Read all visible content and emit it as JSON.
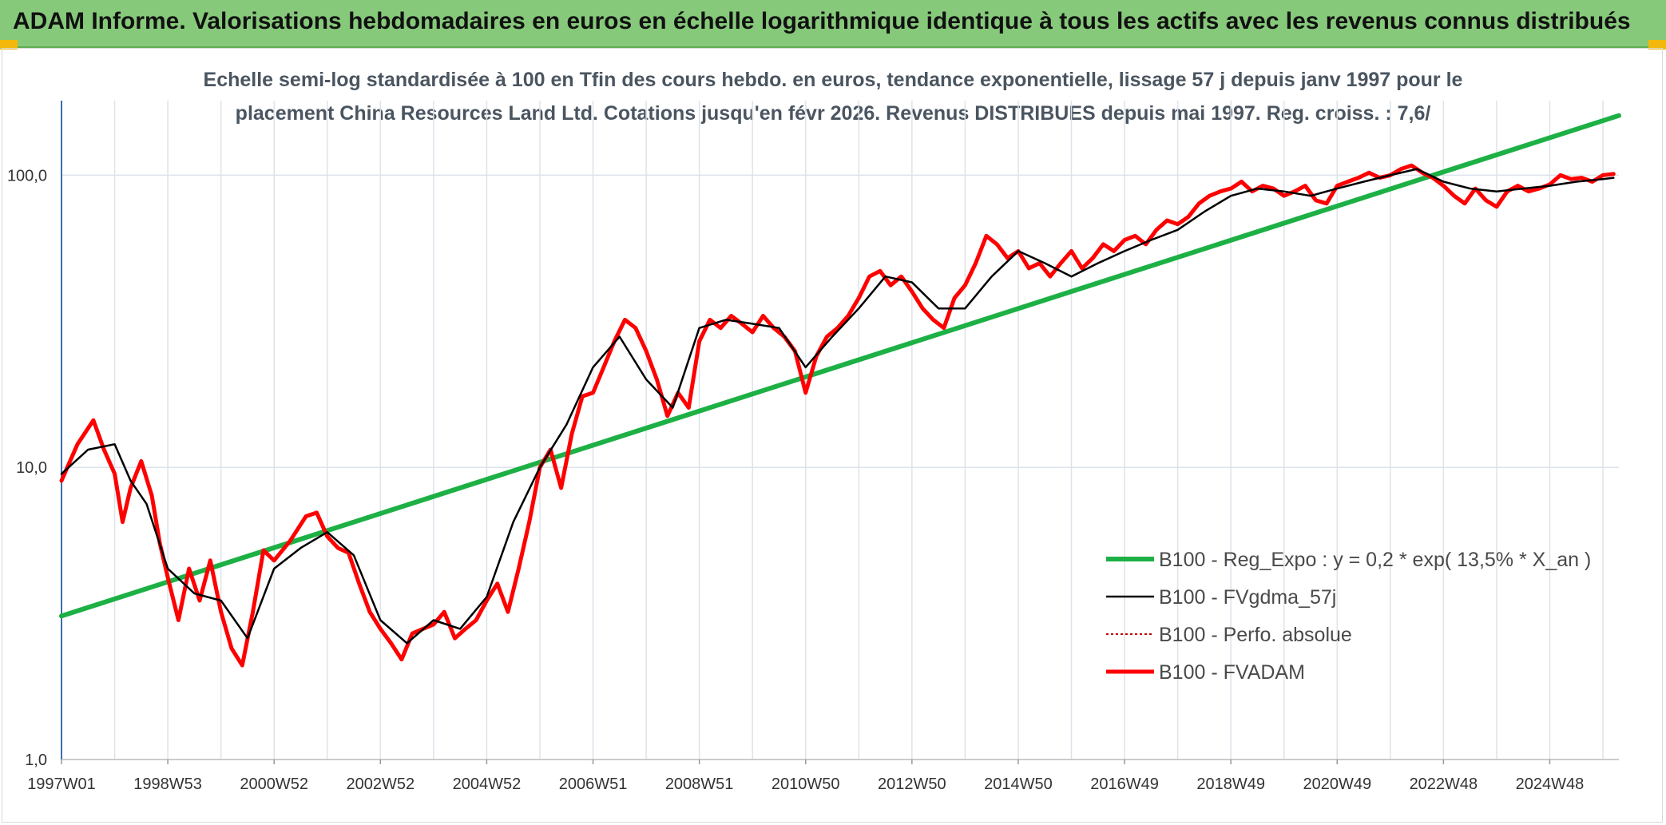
{
  "header": {
    "title": "ADAM Informe. Valorisations hebdomadaires en euros en échelle logarithmique identique à tous les actifs avec les revenus connus distribués"
  },
  "colors": {
    "banner": "#86c97a",
    "regression": "#1db045",
    "smoothed": "#000000",
    "absolute": "#c00000",
    "fvadam": "#ff0000",
    "grid": "#dde3ea"
  },
  "chart_data": {
    "type": "line",
    "title_line1": "Echelle semi-log standardisée à 100 en Tfin des cours hebdo. en euros, tendance exponentielle, lissage 57 j depuis janv 1997 pour le",
    "title_line2": "placement China Resources Land Ltd. Cotations jusqu'en févr 2026. Revenus DISTRIBUES depuis mai 1997. Reg. croiss. : 7,6/",
    "y_scale": "log",
    "ylim": [
      1,
      180
    ],
    "y_ticks": [
      "1,0",
      "10,0",
      "100,0"
    ],
    "y_tick_values": [
      1,
      10,
      100
    ],
    "xlim": [
      1997.0,
      2026.3
    ],
    "x_ticks": [
      "1997W01",
      "1998W53",
      "2000W52",
      "2002W52",
      "2004W52",
      "2006W51",
      "2008W51",
      "2010W50",
      "2012W50",
      "2014W50",
      "2016W49",
      "2018W49",
      "2020W49",
      "2022W48",
      "2024W48"
    ],
    "grid": "vertical every year, horizontal at decades",
    "legend_position": "bottom-right",
    "series": [
      {
        "name": "B100 - Reg_Expo : y = 0,2 * exp( 13,5% *  X_an )",
        "style": "thick green",
        "x": [
          1997.0,
          2026.3
        ],
        "values": [
          3.1,
          160
        ]
      },
      {
        "name": "B100 - FVgdma_57j",
        "style": "thin black",
        "x": [
          1997.0,
          1997.5,
          1998.0,
          1998.3,
          1998.6,
          1999.0,
          1999.5,
          2000.0,
          2000.5,
          2001.0,
          2001.5,
          2002.0,
          2002.5,
          2003.0,
          2003.5,
          2004.0,
          2004.5,
          2005.0,
          2005.5,
          2006.0,
          2006.5,
          2007.0,
          2007.5,
          2008.0,
          2008.5,
          2009.0,
          2009.5,
          2010.0,
          2010.5,
          2011.0,
          2011.5,
          2012.0,
          2012.5,
          2013.0,
          2013.5,
          2014.0,
          2014.5,
          2015.0,
          2015.5,
          2016.0,
          2016.5,
          2017.0,
          2017.5,
          2018.0,
          2018.5,
          2019.0,
          2019.5,
          2020.0,
          2020.5,
          2021.0,
          2021.5,
          2022.0,
          2022.5,
          2023.0,
          2023.5,
          2024.0,
          2024.5,
          2025.0,
          2025.5,
          2026.0,
          2026.2
        ],
        "values": [
          9.5,
          11.5,
          12,
          9,
          7.5,
          4.5,
          3.7,
          3.5,
          2.6,
          4.5,
          5.3,
          6.0,
          5.0,
          3.0,
          2.5,
          3.0,
          2.8,
          3.6,
          6.5,
          10.0,
          14,
          22,
          28,
          20,
          16,
          30,
          32,
          31,
          30,
          22,
          28,
          35,
          45,
          43,
          35,
          35,
          45,
          55,
          50,
          45,
          50,
          55,
          60,
          65,
          75,
          85,
          90,
          88,
          85,
          90,
          95,
          100,
          105,
          95,
          90,
          88,
          90,
          92,
          95,
          97,
          98
        ]
      },
      {
        "name": "B100 - Perfo. absolue",
        "style": "dotted dark red"
      },
      {
        "name": "B100 - FVADAM",
        "style": "thick red",
        "x": [
          1997.0,
          1997.3,
          1997.6,
          1997.8,
          1998.0,
          1998.15,
          1998.3,
          1998.5,
          1998.7,
          1998.85,
          1999.0,
          1999.2,
          1999.4,
          1999.6,
          1999.8,
          2000.0,
          2000.2,
          2000.4,
          2000.6,
          2000.8,
          2001.0,
          2001.3,
          2001.6,
          2001.8,
          2002.0,
          2002.2,
          2002.4,
          2002.6,
          2002.8,
          2003.0,
          2003.2,
          2003.4,
          2003.6,
          2003.8,
          2004.0,
          2004.2,
          2004.4,
          2004.6,
          2004.8,
          2005.0,
          2005.2,
          2005.4,
          2005.6,
          2005.8,
          2006.0,
          2006.2,
          2006.4,
          2006.6,
          2006.8,
          2007.0,
          2007.2,
          2007.4,
          2007.6,
          2007.8,
          2008.0,
          2008.2,
          2008.4,
          2008.6,
          2008.8,
          2009.0,
          2009.2,
          2009.4,
          2009.6,
          2009.8,
          2010.0,
          2010.2,
          2010.4,
          2010.6,
          2010.8,
          2011.0,
          2011.2,
          2011.4,
          2011.6,
          2011.8,
          2012.0,
          2012.2,
          2012.4,
          2012.6,
          2012.8,
          2013.0,
          2013.2,
          2013.4,
          2013.6,
          2013.8,
          2014.0,
          2014.2,
          2014.4,
          2014.6,
          2014.8,
          2015.0,
          2015.2,
          2015.4,
          2015.6,
          2015.8,
          2016.0,
          2016.2,
          2016.4,
          2016.6,
          2016.8,
          2017.0,
          2017.2,
          2017.4,
          2017.6,
          2017.8,
          2018.0,
          2018.2,
          2018.4,
          2018.6,
          2018.8,
          2019.0,
          2019.2,
          2019.4,
          2019.6,
          2019.8,
          2020.0,
          2020.2,
          2020.4,
          2020.6,
          2020.8,
          2021.0,
          2021.2,
          2021.4,
          2021.6,
          2021.8,
          2022.0,
          2022.2,
          2022.4,
          2022.6,
          2022.8,
          2023.0,
          2023.2,
          2023.4,
          2023.6,
          2023.8,
          2024.0,
          2024.2,
          2024.4,
          2024.6,
          2024.8,
          2025.0,
          2025.2,
          2025.4,
          2025.6,
          2025.8,
          2026.0,
          2026.2
        ],
        "values": [
          9.0,
          12.0,
          14.5,
          11.5,
          9.5,
          6.5,
          8.5,
          10.5,
          8.0,
          5.5,
          4.2,
          3.0,
          4.5,
          3.5,
          4.8,
          3.2,
          2.4,
          2.1,
          3.2,
          5.2,
          4.8,
          5.6,
          6.8,
          7.0,
          5.8,
          5.3,
          5.1,
          4.0,
          3.2,
          2.8,
          2.5,
          2.2,
          2.7,
          2.8,
          2.9,
          3.2,
          2.6,
          2.8,
          3.0,
          3.5,
          4.0,
          3.2,
          4.5,
          6.5,
          10.0,
          11.5,
          8.5,
          13.0,
          17.5,
          18.0,
          22.0,
          27.0,
          32.0,
          30.0,
          25.0,
          20.0,
          15.0,
          18.0,
          16.0,
          27.0,
          32.0,
          30.0,
          33.0,
          31.0,
          29.0,
          33.0,
          30.0,
          28.0,
          25.0,
          18.0,
          24.0,
          28.0,
          30.0,
          33.0,
          38.0,
          45.0,
          47.0,
          42.0,
          45.0,
          40.0,
          35.0,
          32.0,
          30.0,
          38.0,
          42.0,
          50.0,
          62.0,
          58.0,
          52.0,
          55.0,
          48.0,
          50.0,
          45.0,
          50.0,
          55.0,
          48.0,
          52.0,
          58.0,
          55.0,
          60.0,
          62.0,
          58.0,
          65.0,
          70.0,
          68.0,
          72.0,
          80.0,
          85.0,
          88.0,
          90.0,
          95.0,
          88.0,
          92.0,
          90.0,
          85.0,
          88.0,
          92.0,
          82.0,
          80.0,
          92.0,
          95.0,
          98.0,
          102.0,
          98.0,
          100.0,
          105.0,
          108.0,
          102.0,
          98.0,
          92.0,
          85.0,
          80.0,
          90.0,
          82.0,
          78.0,
          88.0,
          92.0,
          88.0,
          90.0,
          93.0,
          100.0,
          97.0,
          98.0,
          95.0,
          100.0,
          101.0
        ]
      }
    ]
  }
}
